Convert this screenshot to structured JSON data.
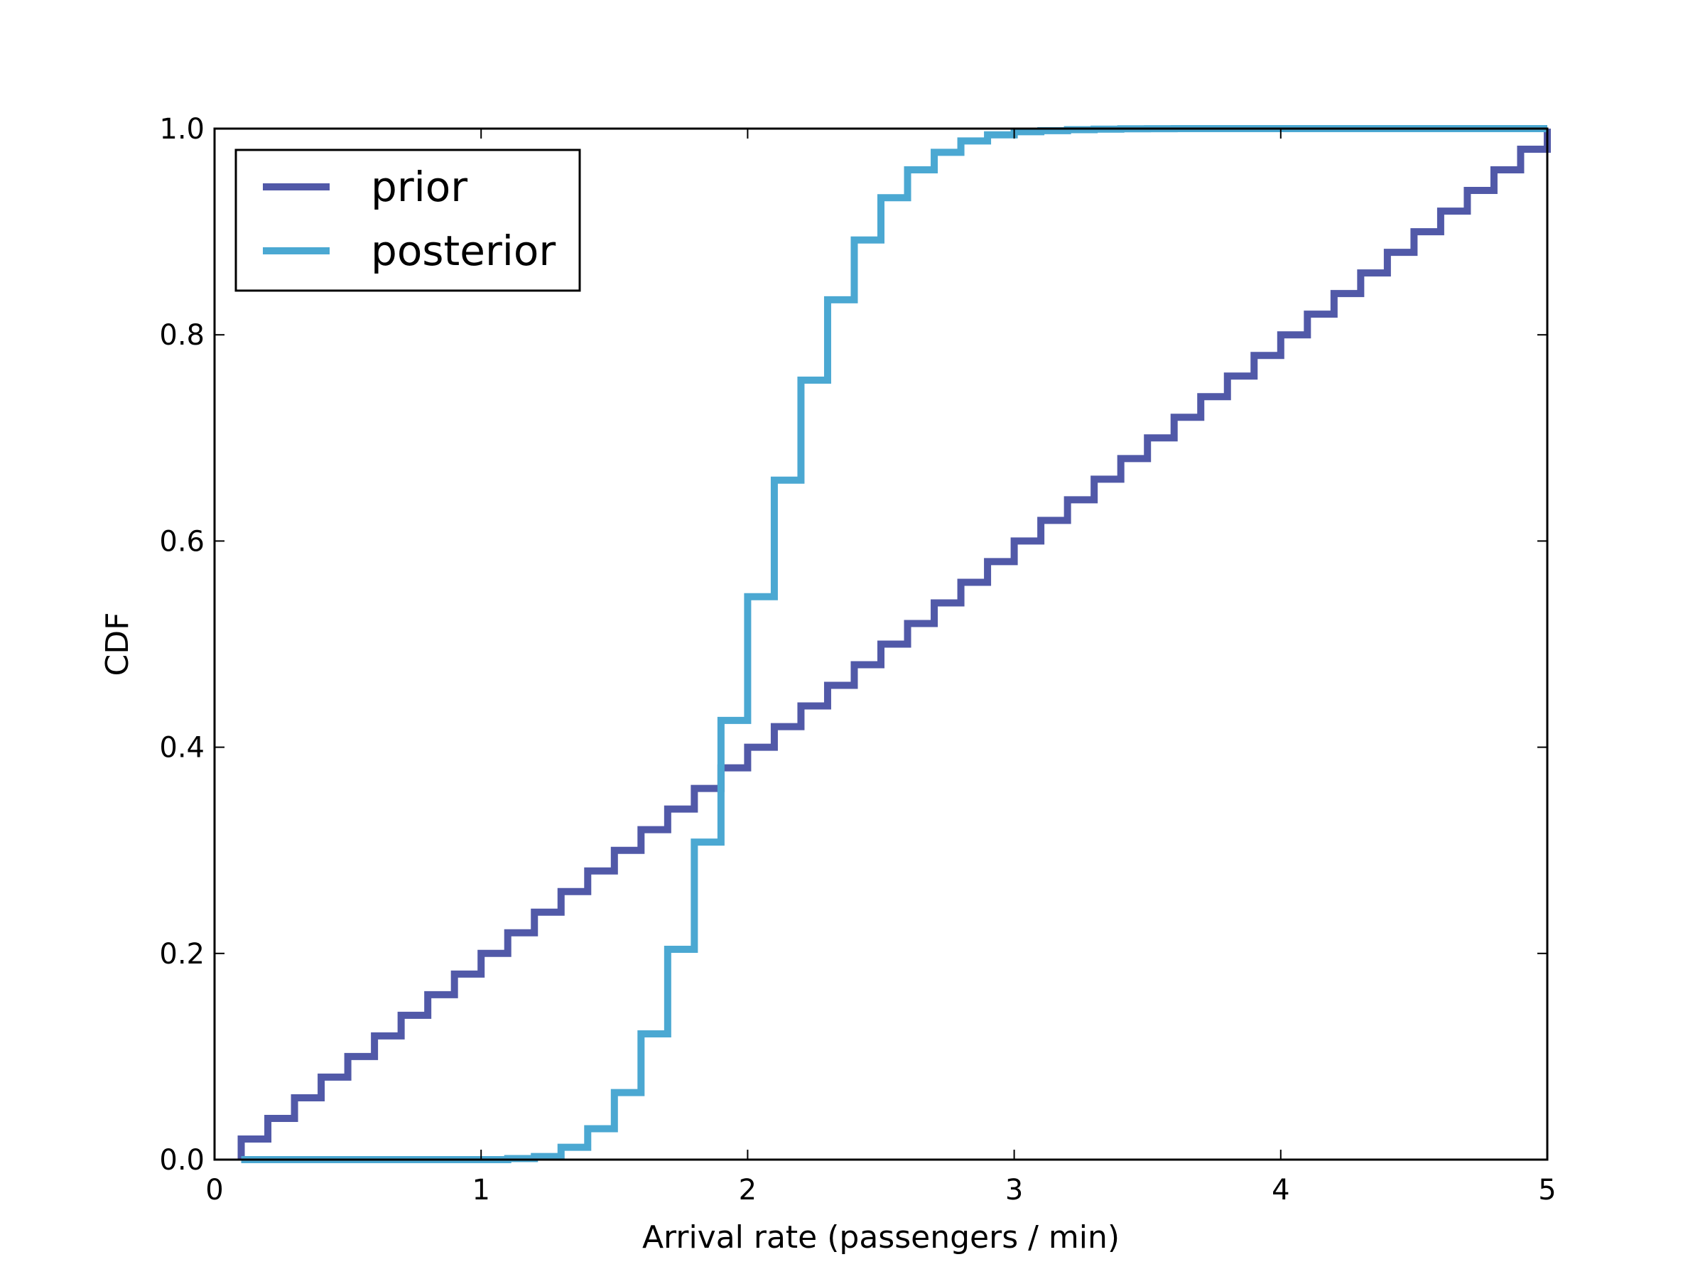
{
  "chart_data": {
    "type": "line",
    "step": true,
    "xlabel": "Arrival rate (passengers / min)",
    "ylabel": "CDF",
    "xlim": [
      0,
      5
    ],
    "ylim": [
      0.0,
      1.0
    ],
    "xticks": [
      0,
      1,
      2,
      3,
      4,
      5
    ],
    "xtick_labels": [
      "0",
      "1",
      "2",
      "3",
      "4",
      "5"
    ],
    "yticks": [
      0.0,
      0.2,
      0.4,
      0.6,
      0.8,
      1.0
    ],
    "ytick_labels": [
      "0.0",
      "0.2",
      "0.4",
      "0.6",
      "0.8",
      "1.0"
    ],
    "grid": false,
    "legend_position": "upper-left",
    "series": [
      {
        "name": "prior",
        "color": "#5159a8",
        "x": [
          0.1,
          0.2,
          0.3,
          0.4,
          0.5,
          0.6,
          0.7,
          0.8,
          0.9,
          1.0,
          1.1,
          1.2,
          1.3,
          1.4,
          1.5,
          1.6,
          1.7,
          1.8,
          1.9,
          2.0,
          2.1,
          2.2,
          2.3,
          2.4,
          2.5,
          2.6,
          2.7,
          2.8,
          2.9,
          3.0,
          3.1,
          3.2,
          3.3,
          3.4,
          3.5,
          3.6,
          3.7,
          3.8,
          3.9,
          4.0,
          4.1,
          4.2,
          4.3,
          4.4,
          4.5,
          4.6,
          4.7,
          4.8,
          4.9,
          5.0
        ],
        "y": [
          0.02,
          0.04,
          0.06,
          0.08,
          0.1,
          0.12,
          0.14,
          0.16,
          0.18,
          0.2,
          0.22,
          0.24,
          0.26,
          0.28,
          0.3,
          0.32,
          0.34,
          0.36,
          0.38,
          0.4,
          0.42,
          0.44,
          0.46,
          0.48,
          0.5,
          0.52,
          0.54,
          0.56,
          0.58,
          0.6,
          0.62,
          0.64,
          0.66,
          0.68,
          0.7,
          0.72,
          0.74,
          0.76,
          0.78,
          0.8,
          0.82,
          0.84,
          0.86,
          0.88,
          0.9,
          0.92,
          0.94,
          0.96,
          0.98,
          1.0
        ]
      },
      {
        "name": "posterior",
        "color": "#4ba8d2",
        "x": [
          0.1,
          0.2,
          0.3,
          0.4,
          0.5,
          0.6,
          0.7,
          0.8,
          0.9,
          1.0,
          1.1,
          1.2,
          1.3,
          1.4,
          1.5,
          1.6,
          1.7,
          1.8,
          1.9,
          2.0,
          2.1,
          2.2,
          2.3,
          2.4,
          2.5,
          2.6,
          2.7,
          2.8,
          2.9,
          3.0,
          3.1,
          3.2,
          3.3,
          3.4,
          3.5,
          3.6,
          3.7,
          3.8,
          3.9,
          4.0,
          4.1,
          4.2,
          4.3,
          4.4,
          4.5,
          4.6,
          4.7,
          4.8,
          4.9,
          5.0
        ],
        "y": [
          0.0,
          0.0,
          0.0,
          0.0,
          0.0,
          0.0,
          0.0,
          0.0,
          0.0,
          0.0,
          0.001,
          0.003,
          0.012,
          0.03,
          0.065,
          0.122,
          0.204,
          0.308,
          0.426,
          0.546,
          0.659,
          0.756,
          0.834,
          0.892,
          0.933,
          0.96,
          0.977,
          0.988,
          0.994,
          0.997,
          0.998,
          0.999,
          0.9995,
          0.9998,
          0.9999,
          1.0,
          1.0,
          1.0,
          1.0,
          1.0,
          1.0,
          1.0,
          1.0,
          1.0,
          1.0,
          1.0,
          1.0,
          1.0,
          1.0,
          1.0
        ]
      }
    ]
  }
}
